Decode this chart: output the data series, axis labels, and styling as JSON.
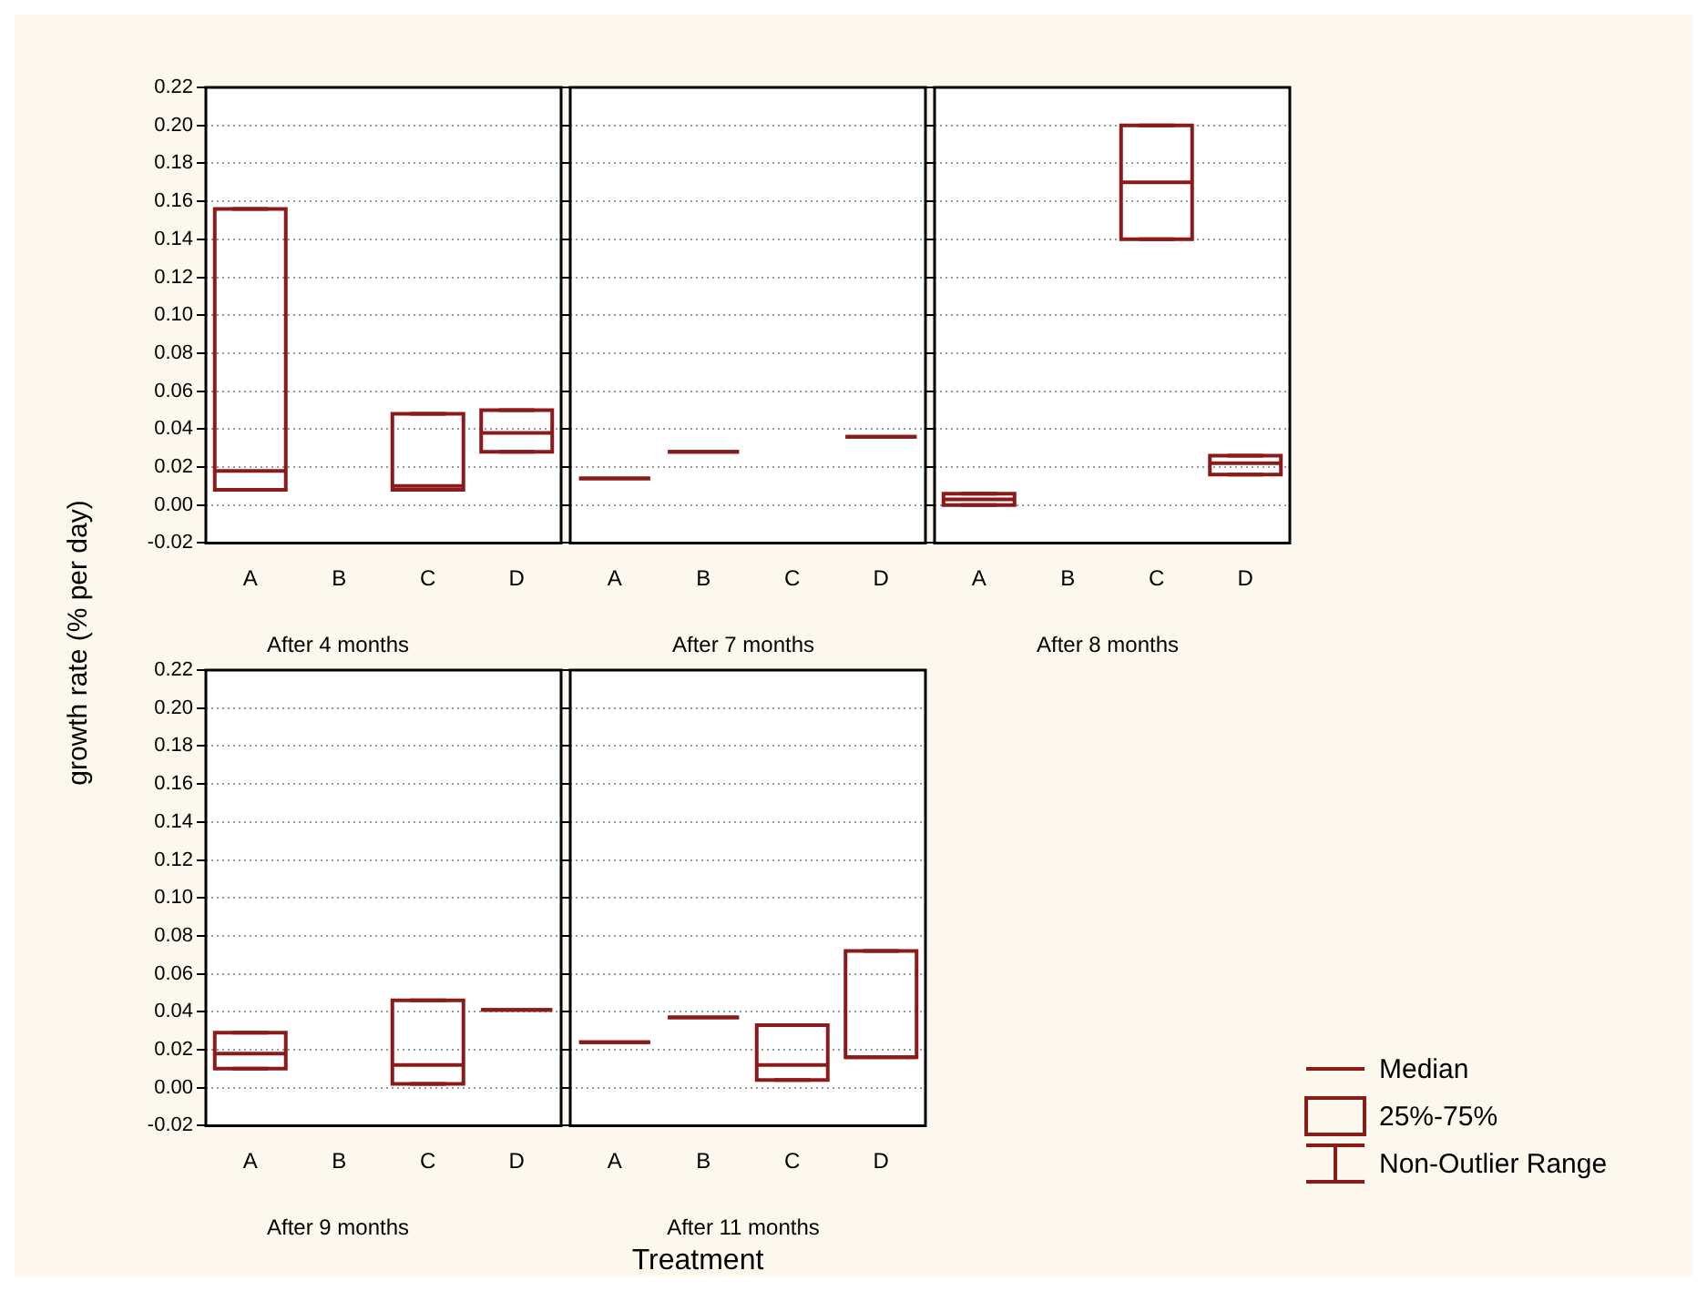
{
  "chart_data": [
    {
      "type": "box",
      "title": "After 4 months",
      "ylabel": "growth rate (% per day)",
      "categories": [
        "A",
        "B",
        "C",
        "D"
      ],
      "ylim": [
        -0.02,
        0.22
      ],
      "yticks": [
        {
          "value": -0.02,
          "label": "-0.02"
        },
        {
          "value": 0,
          "label": "0.00"
        },
        {
          "value": 0.02,
          "label": "0.02"
        },
        {
          "value": 0.04,
          "label": "0.04"
        },
        {
          "value": 0.06,
          "label": "0.06"
        },
        {
          "value": 0.08,
          "label": "0.08"
        },
        {
          "value": 0.1,
          "label": "0.10"
        },
        {
          "value": 0.12,
          "label": "0.12"
        },
        {
          "value": 0.14,
          "label": "0.14"
        },
        {
          "value": 0.16,
          "label": "0.16"
        },
        {
          "value": 0.18,
          "label": "0.18"
        },
        {
          "value": 0.2,
          "label": "0.20"
        },
        {
          "value": 0.22,
          "label": "0.22"
        }
      ],
      "grid": "y",
      "series": [
        {
          "color": "#8b1a1a",
          "boxes": [
            {
              "low": 0.008,
              "q1": 0.008,
              "median": 0.018,
              "q3": 0.156,
              "high": 0.156
            },
            null,
            {
              "low": 0.008,
              "q1": 0.008,
              "median": 0.01,
              "q3": 0.048,
              "high": 0.048
            },
            {
              "low": 0.028,
              "q1": 0.028,
              "median": 0.038,
              "q3": 0.05,
              "high": 0.05
            }
          ]
        }
      ]
    },
    {
      "type": "box",
      "title": "After 7 months",
      "categories": [
        "A",
        "B",
        "C",
        "D"
      ],
      "ylim": [
        -0.02,
        0.22
      ],
      "yticks": [
        {
          "value": -0.02,
          "label": null
        },
        {
          "value": 0,
          "label": null
        },
        {
          "value": 0.02,
          "label": null
        },
        {
          "value": 0.04,
          "label": null
        },
        {
          "value": 0.06,
          "label": null
        },
        {
          "value": 0.08,
          "label": null
        },
        {
          "value": 0.1,
          "label": null
        },
        {
          "value": 0.12,
          "label": null
        },
        {
          "value": 0.14,
          "label": null
        },
        {
          "value": 0.16,
          "label": null
        },
        {
          "value": 0.18,
          "label": null
        },
        {
          "value": 0.2,
          "label": null
        },
        {
          "value": 0.22,
          "label": null
        }
      ],
      "grid": "y",
      "tick_labels": "x",
      "series": [
        {
          "color": "#8b1a1a",
          "boxes": [
            {
              "low": 0.014,
              "q1": 0.014,
              "median": 0.014,
              "q3": 0.014,
              "high": 0.014
            },
            {
              "low": 0.028,
              "q1": 0.028,
              "median": 0.028,
              "q3": 0.028,
              "high": 0.028
            },
            null,
            {
              "low": 0.036,
              "q1": 0.036,
              "median": 0.036,
              "q3": 0.036,
              "high": 0.036
            }
          ]
        }
      ]
    },
    {
      "type": "box",
      "title": "After 8 months",
      "categories": [
        "A",
        "B",
        "C",
        "D"
      ],
      "ylim": [
        -0.02,
        0.22
      ],
      "yticks": [
        {
          "value": -0.02,
          "label": null
        },
        {
          "value": 0,
          "label": null
        },
        {
          "value": 0.02,
          "label": null
        },
        {
          "value": 0.04,
          "label": null
        },
        {
          "value": 0.06,
          "label": null
        },
        {
          "value": 0.08,
          "label": null
        },
        {
          "value": 0.1,
          "label": null
        },
        {
          "value": 0.12,
          "label": null
        },
        {
          "value": 0.14,
          "label": null
        },
        {
          "value": 0.16,
          "label": null
        },
        {
          "value": 0.18,
          "label": null
        },
        {
          "value": 0.2,
          "label": null
        },
        {
          "value": 0.22,
          "label": null
        }
      ],
      "grid": "y",
      "tick_labels": "x",
      "series": [
        {
          "color": "#8b1a1a",
          "boxes": [
            {
              "low": 0,
              "q1": 0,
              "median": 0.003,
              "q3": 0.006,
              "high": 0.006
            },
            null,
            {
              "low": 0.14,
              "q1": 0.14,
              "median": 0.17,
              "q3": 0.2,
              "high": 0.2
            },
            {
              "low": 0.016,
              "q1": 0.016,
              "median": 0.022,
              "q3": 0.026,
              "high": 0.026
            }
          ]
        }
      ]
    },
    {
      "type": "box",
      "title": "After 9 months",
      "categories": [
        "A",
        "B",
        "C",
        "D"
      ],
      "ylim": [
        -0.02,
        0.22
      ],
      "yticks": [
        {
          "value": -0.02,
          "label": "-0.02"
        },
        {
          "value": 0,
          "label": "0.00"
        },
        {
          "value": 0.02,
          "label": "0.02"
        },
        {
          "value": 0.04,
          "label": "0.04"
        },
        {
          "value": 0.06,
          "label": "0.06"
        },
        {
          "value": 0.08,
          "label": "0.08"
        },
        {
          "value": 0.1,
          "label": "0.10"
        },
        {
          "value": 0.12,
          "label": "0.12"
        },
        {
          "value": 0.14,
          "label": "0.14"
        },
        {
          "value": 0.16,
          "label": "0.16"
        },
        {
          "value": 0.18,
          "label": "0.18"
        },
        {
          "value": 0.2,
          "label": "0.20"
        },
        {
          "value": 0.22,
          "label": "0.22"
        }
      ],
      "grid": "y",
      "series": [
        {
          "color": "#8b1a1a",
          "boxes": [
            {
              "low": 0.01,
              "q1": 0.01,
              "median": 0.018,
              "q3": 0.029,
              "high": 0.029
            },
            null,
            {
              "low": 0.002,
              "q1": 0.002,
              "median": 0.012,
              "q3": 0.046,
              "high": 0.046
            },
            {
              "low": 0.041,
              "q1": 0.041,
              "median": 0.041,
              "q3": 0.041,
              "high": 0.041
            }
          ]
        }
      ]
    },
    {
      "type": "box",
      "title": "After 11 months",
      "xlabel": "Treatment",
      "categories": [
        "A",
        "B",
        "C",
        "D"
      ],
      "ylim": [
        -0.02,
        0.22
      ],
      "yticks": [
        {
          "value": -0.02,
          "label": null
        },
        {
          "value": 0,
          "label": null
        },
        {
          "value": 0.02,
          "label": null
        },
        {
          "value": 0.04,
          "label": null
        },
        {
          "value": 0.06,
          "label": null
        },
        {
          "value": 0.08,
          "label": null
        },
        {
          "value": 0.1,
          "label": null
        },
        {
          "value": 0.12,
          "label": null
        },
        {
          "value": 0.14,
          "label": null
        },
        {
          "value": 0.16,
          "label": null
        },
        {
          "value": 0.18,
          "label": null
        },
        {
          "value": 0.2,
          "label": null
        },
        {
          "value": 0.22,
          "label": null
        }
      ],
      "grid": "y",
      "tick_labels": "x",
      "series": [
        {
          "color": "#8b1a1a",
          "boxes": [
            {
              "low": 0.024,
              "q1": 0.024,
              "median": 0.024,
              "q3": 0.024,
              "high": 0.024
            },
            {
              "low": 0.037,
              "q1": 0.037,
              "median": 0.037,
              "q3": 0.037,
              "high": 0.037
            },
            {
              "low": 0.004,
              "q1": 0.004,
              "median": 0.012,
              "q3": 0.033,
              "high": 0.033
            },
            {
              "low": 0.016,
              "q1": 0.016,
              "median": 0.016,
              "q3": 0.072,
              "high": 0.072
            }
          ]
        }
      ]
    },
    {
      "type": "other",
      "annotations": [
        "Median",
        "25%-75%",
        "Non-Outlier Range"
      ]
    }
  ]
}
